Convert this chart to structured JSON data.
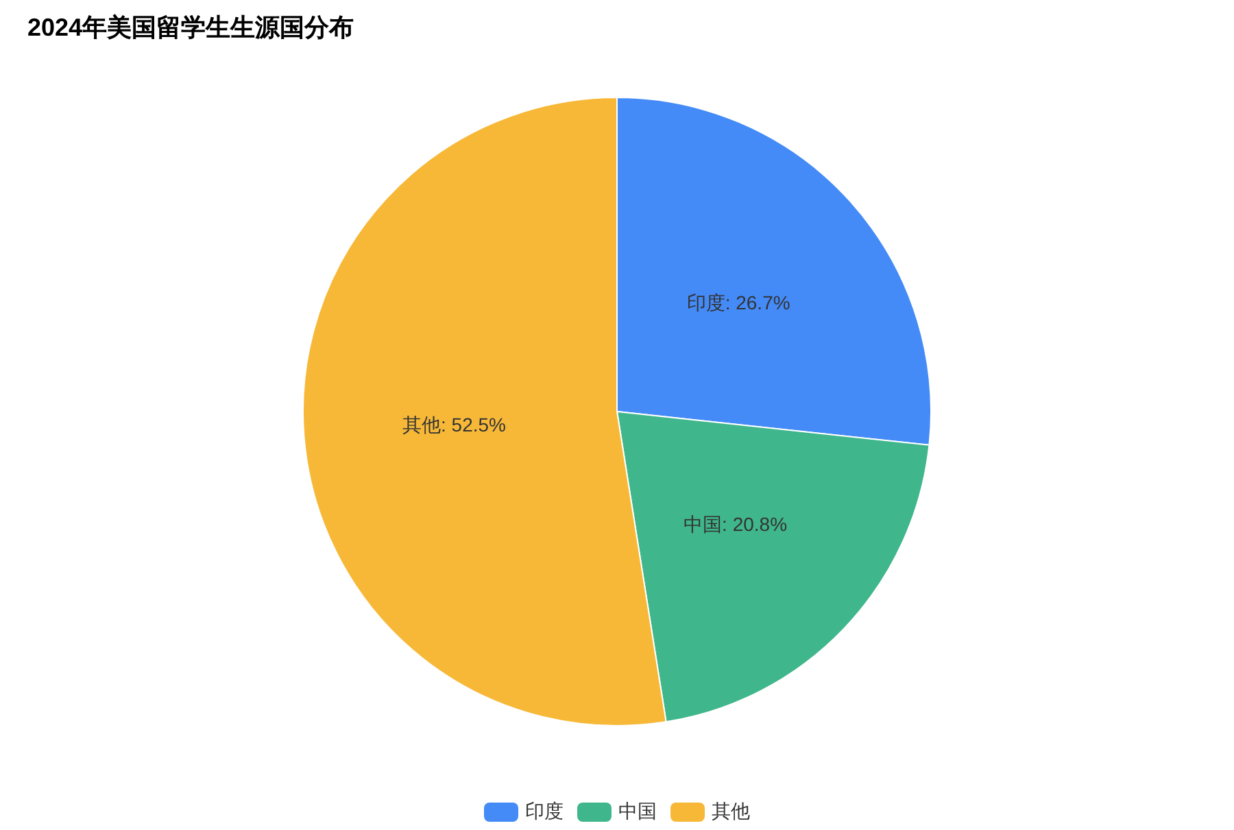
{
  "chart_data": {
    "type": "pie",
    "title": "2024年美国留学生生源国分布",
    "categories": [
      "印度",
      "中国",
      "其他"
    ],
    "values": [
      26.7,
      20.8,
      52.5
    ],
    "value_labels": [
      "印度: 26.7%",
      "中国: 20.8%",
      "其他: 52.5%"
    ],
    "colors": [
      "#448bf7",
      "#3fb68b",
      "#f7b838"
    ],
    "legend": "bottom"
  }
}
